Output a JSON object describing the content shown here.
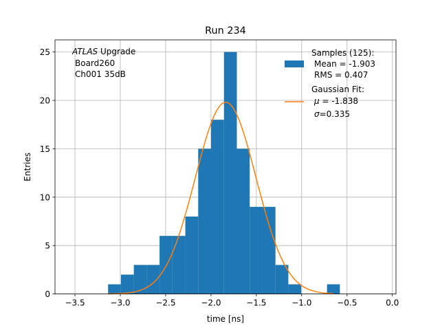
{
  "chart_data": {
    "type": "bar",
    "title": "Run 234",
    "xlabel": "time [ns]",
    "ylabel": "Entries",
    "xlim": [
      -3.72,
      0.04
    ],
    "ylim": [
      0,
      26.25
    ],
    "grid": true,
    "xticks": [
      -3.5,
      -3.0,
      -2.5,
      -2.0,
      -1.5,
      -1.0,
      -0.5,
      0.0
    ],
    "xtick_labels": [
      "−3.5",
      "−3.0",
      "−2.5",
      "−2.0",
      "−1.5",
      "−1.0",
      "−0.5",
      "0.0"
    ],
    "yticks": [
      0,
      5,
      10,
      15,
      20,
      25
    ],
    "ytick_labels": [
      "0",
      "5",
      "10",
      "15",
      "20",
      "25"
    ],
    "annotation": {
      "line1_italic": "ATLAS",
      "line1_rest": " Upgrade",
      "line2": "Board260",
      "line3": "Ch001 35dB"
    },
    "histogram": {
      "name": "Samples (125):",
      "color": "#1f77b4",
      "bin_edges": [
        -3.135,
        -2.993,
        -2.851,
        -2.709,
        -2.567,
        -2.425,
        -2.283,
        -2.141,
        -1.999,
        -1.857,
        -1.715,
        -1.573,
        -1.431,
        -1.289,
        -1.147,
        -1.005,
        -0.863,
        -0.721,
        -0.579
      ],
      "counts": [
        1,
        2,
        3,
        3,
        6,
        6,
        8,
        15,
        18,
        25,
        15,
        9,
        9,
        3,
        1,
        0,
        0,
        1
      ]
    },
    "gaussian_fit": {
      "name": "Gaussian Fit:",
      "color": "#ff7f0e",
      "mu": -1.838,
      "sigma": 0.335,
      "amplitude": 19.8,
      "x_range": [
        -3.135,
        -0.65
      ]
    },
    "legend": {
      "samples_title": "Samples (125):",
      "samples_mean": "Mean = -1.903",
      "samples_rms": "RMS = 0.407",
      "fit_title": "Gaussian Fit:",
      "fit_mu_symbol": "μ",
      "fit_mu_value": " = -1.838",
      "fit_sigma_symbol": "σ",
      "fit_sigma_value": "=0.335",
      "placement": "top-right"
    }
  }
}
